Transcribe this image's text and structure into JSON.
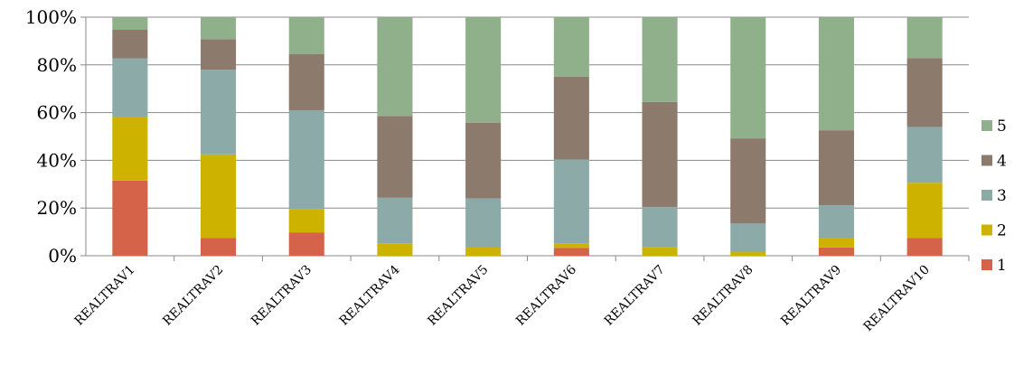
{
  "chart_data": {
    "type": "bar",
    "stacked": true,
    "percent": true,
    "title": "",
    "xlabel": "",
    "ylabel": "",
    "ylim": [
      0,
      100
    ],
    "grid": true,
    "legend_position": "right",
    "y_ticks": [
      "0%",
      "20%",
      "40%",
      "60%",
      "80%",
      "100%"
    ],
    "categories": [
      "REALTRAV1",
      "REALTRAV2",
      "REALTRAV3",
      "REALTRAV4",
      "REALTRAV5",
      "REALTRAV6",
      "REALTRAV7",
      "REALTRAV8",
      "REALTRAV9",
      "REALTRAV10"
    ],
    "series": [
      {
        "name": "1",
        "color": "#d4634a",
        "values": [
          31.5,
          7.5,
          9.8,
          0,
          0,
          3.3,
          0,
          0,
          3.5,
          7.5
        ]
      },
      {
        "name": "2",
        "color": "#cdb300",
        "values": [
          26.5,
          35,
          9.6,
          5.2,
          3.4,
          1.9,
          3.5,
          1.7,
          3.9,
          23.1
        ]
      },
      {
        "name": "3",
        "color": "#8baaa8",
        "values": [
          24.7,
          35.5,
          41.6,
          19.1,
          20.6,
          35.1,
          16.9,
          11.8,
          13.8,
          23.4
        ]
      },
      {
        "name": "4",
        "color": "#8c7b6d",
        "values": [
          12,
          12.8,
          23.6,
          34.3,
          31.8,
          34.8,
          44.1,
          35.7,
          31.4,
          28.8
        ]
      },
      {
        "name": "5",
        "color": "#8fb08a",
        "values": [
          5.3,
          9.2,
          15.4,
          41.4,
          44.2,
          24.9,
          35.5,
          50.8,
          47.4,
          17.2
        ]
      }
    ]
  }
}
